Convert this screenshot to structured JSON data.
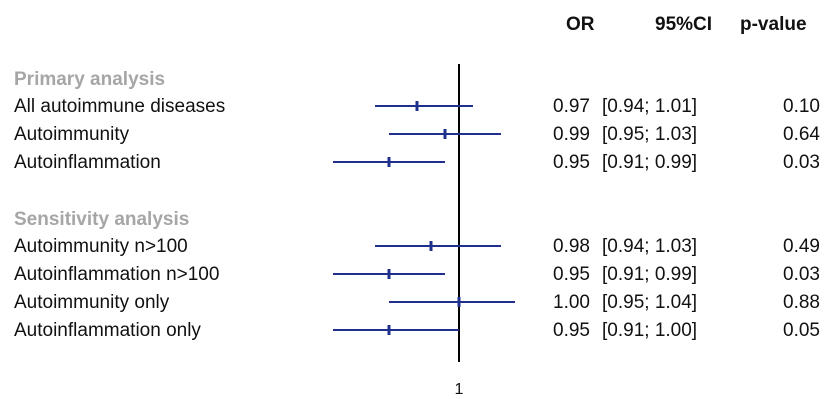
{
  "headers": {
    "or": "OR",
    "ci": "95%CI",
    "p": "p-value"
  },
  "sections": [
    {
      "title": "Primary analysis",
      "rows": [
        {
          "label": "All autoimmune diseases",
          "or_text": "0.97",
          "ci_text": "[0.94; 1.01]",
          "p_text": "0.10"
        },
        {
          "label": "Autoimmunity",
          "or_text": "0.99",
          "ci_text": "[0.95; 1.03]",
          "p_text": "0.64"
        },
        {
          "label": "Autoinflammation",
          "or_text": "0.95",
          "ci_text": "[0.91; 0.99]",
          "p_text": "0.03"
        }
      ]
    },
    {
      "title": "Sensitivity analysis",
      "rows": [
        {
          "label": "Autoimmunity n>100",
          "or_text": "0.98",
          "ci_text": "[0.94; 1.03]",
          "p_text": "0.49"
        },
        {
          "label": "Autoinflammation n>100",
          "or_text": "0.95",
          "ci_text": "[0.91; 0.99]",
          "p_text": "0.03"
        },
        {
          "label": "Autoimmunity only",
          "or_text": "1.00",
          "ci_text": "[0.95; 1.04]",
          "p_text": "0.88"
        },
        {
          "label": "Autoinflammation only",
          "or_text": "0.95",
          "ci_text": "[0.91; 1.00]",
          "p_text": "0.05"
        }
      ]
    }
  ],
  "chart_data": {
    "type": "forest",
    "reference_line": 1,
    "x_tick_labels": [
      "1"
    ],
    "series": [
      {
        "name": "All autoimmune diseases",
        "estimate": 0.97,
        "lower": 0.94,
        "upper": 1.01
      },
      {
        "name": "Autoimmunity",
        "estimate": 0.99,
        "lower": 0.95,
        "upper": 1.03
      },
      {
        "name": "Autoinflammation",
        "estimate": 0.95,
        "lower": 0.91,
        "upper": 0.99
      },
      {
        "name": "Autoimmunity n>100",
        "estimate": 0.98,
        "lower": 0.94,
        "upper": 1.03
      },
      {
        "name": "Autoinflammation n>100",
        "estimate": 0.95,
        "lower": 0.91,
        "upper": 0.99
      },
      {
        "name": "Autoimmunity only",
        "estimate": 1.0,
        "lower": 0.95,
        "upper": 1.04
      },
      {
        "name": "Autoinflammation only",
        "estimate": 0.95,
        "lower": 0.91,
        "upper": 1.0
      }
    ],
    "colors": {
      "interval": "#1f2f8c",
      "reference": "#000000",
      "section": "#a6a6a6"
    }
  }
}
